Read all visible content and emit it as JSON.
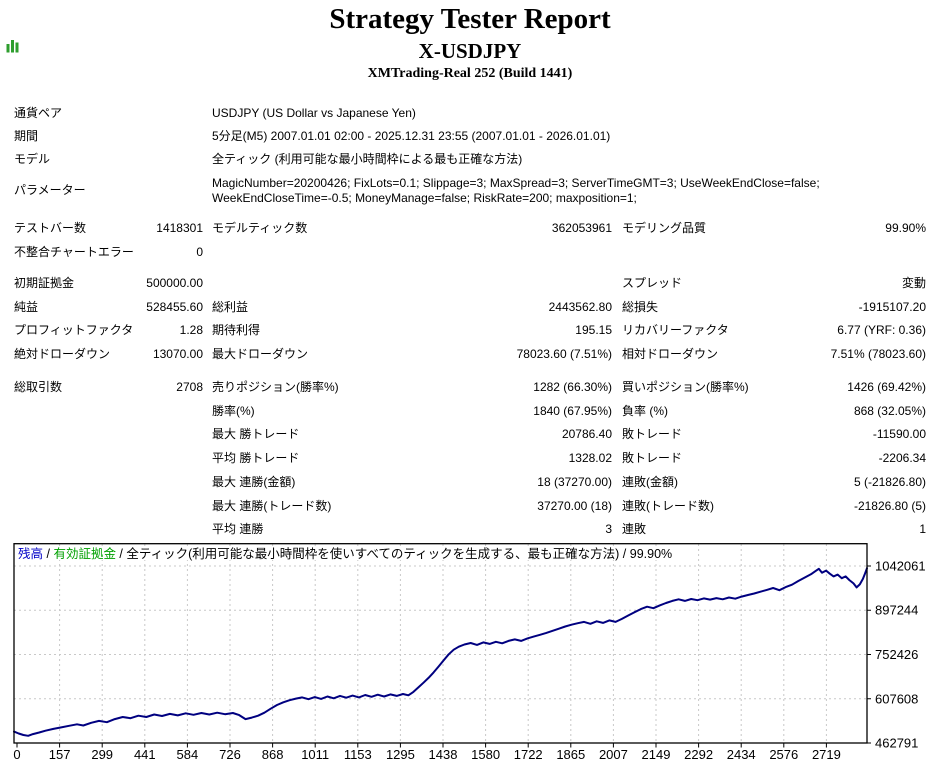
{
  "header": {
    "title": "Strategy Tester Report",
    "symbol": "X-USDJPY",
    "broker": "XMTrading-Real 252 (Build 1441)",
    "icon": "green-bar-chart-icon",
    "icon_color": "#2E9E2E"
  },
  "report": {
    "rows": [
      {
        "l1": "通貨ペア",
        "w": "USDJPY (US Dollar vs Japanese Yen)"
      },
      {
        "l1": "期間",
        "w": "5分足(M5) 2007.01.01 02:00 - 2025.12.31 23:55 (2007.01.01 - 2026.01.01)"
      },
      {
        "l1": "モデル",
        "w": "全ティック (利用可能な最小時間枠による最も正確な方法)"
      },
      {
        "l1": "パラメーター",
        "w_lines": [
          "MagicNumber=20200426; FixLots=0.1; Slippage=3; MaxSpread=3; ServerTimeGMT=3; UseWeekEndClose=false;",
          "WeekEndCloseTime=-0.5; MoneyManage=false; RiskRate=200; maxposition=1;"
        ]
      },
      {
        "l1": "テストバー数",
        "v1": "1418301",
        "l2": "モデルティック数",
        "v2": "362053961",
        "l3": "モデリング品質",
        "v3": "99.90%"
      },
      {
        "l1": "不整合チャートエラー",
        "v1": "0"
      },
      {
        "l1": "初期証拠金",
        "v1": "500000.00",
        "l3": "スプレッド",
        "v3": "変動"
      },
      {
        "l1": "純益",
        "v1": "528455.60",
        "l2": "総利益",
        "v2": "2443562.80",
        "l3": "総損失",
        "v3": "-1915107.20"
      },
      {
        "l1": "プロフィットファクタ",
        "v1": "1.28",
        "l2": "期待利得",
        "v2": "195.15",
        "l3": "リカバリーファクタ",
        "v3": "6.77 (YRF: 0.36)"
      },
      {
        "l1": "絶対ドローダウン",
        "v1": "13070.00",
        "l2": "最大ドローダウン",
        "v2": "78023.60 (7.51%)",
        "l3": "相対ドローダウン",
        "v3": "7.51% (78023.60)"
      },
      {
        "l1": "総取引数",
        "v1": "2708",
        "l2": "売りポジション(勝率%)",
        "v2": "1282 (66.30%)",
        "l3": "買いポジション(勝率%)",
        "v3": "1426 (69.42%)"
      },
      {
        "l2": "勝率(%)",
        "v2": "1840 (67.95%)",
        "l3": "負率 (%)",
        "v3": "868 (32.05%)"
      },
      {
        "l2": "最大 勝トレード",
        "v2": "20786.40",
        "l3": "敗トレード",
        "v3": "-11590.00"
      },
      {
        "l2": "平均 勝トレード",
        "v2": "1328.02",
        "l3": "敗トレード",
        "v3": "-2206.34"
      },
      {
        "l2": "最大 連勝(金額)",
        "v2": "18 (37270.00)",
        "l3": "連敗(金額)",
        "v3": "5 (-21826.80)"
      },
      {
        "l2": "最大 連勝(トレード数)",
        "v2": "37270.00 (18)",
        "l3": "連敗(トレード数)",
        "v3": "-21826.80 (5)"
      },
      {
        "l2": "平均 連勝",
        "v2": "3",
        "l3": "連敗",
        "v3": "1"
      }
    ]
  },
  "chart_data": {
    "type": "line",
    "title": "残高 / 有効証拠金 / 全ティック(利用可能な最小時間枠を使いすべてのティックを生成する、最も正確な方法) / 99.90%",
    "legend_parts": {
      "balance": "残高",
      "sep1": " / ",
      "equity": "有効証拠金",
      "rest": " / 全ティック(利用可能な最小時間枠を使いすべてのティックを生成する、最も正確な方法) / 99.90%"
    },
    "colors": {
      "balance_text": "#0000C8",
      "equity_text": "#00A000",
      "curve": "#000080",
      "grid": "#C8C8C8",
      "axis": "#000000"
    },
    "legend_position": "top-left-inside",
    "grid": true,
    "x_ticks": [
      0,
      157,
      299,
      441,
      584,
      726,
      868,
      1011,
      1153,
      1295,
      1438,
      1580,
      1722,
      1865,
      2007,
      2149,
      2292,
      2434,
      2576,
      2719
    ],
    "y_ticks": [
      462791,
      607608,
      752426,
      897244,
      1042061
    ],
    "x_range": [
      0,
      2708
    ],
    "ylim": [
      462791,
      1042061
    ],
    "series": [
      {
        "name": "残高",
        "points": [
          [
            0,
            500000
          ],
          [
            15,
            494000
          ],
          [
            30,
            489000
          ],
          [
            45,
            486500
          ],
          [
            60,
            492000
          ],
          [
            80,
            497000
          ],
          [
            100,
            503000
          ],
          [
            125,
            509000
          ],
          [
            150,
            514000
          ],
          [
            175,
            519000
          ],
          [
            200,
            524000
          ],
          [
            220,
            520000
          ],
          [
            245,
            529000
          ],
          [
            270,
            535000
          ],
          [
            295,
            531000
          ],
          [
            320,
            541000
          ],
          [
            345,
            548000
          ],
          [
            370,
            544000
          ],
          [
            395,
            552000
          ],
          [
            420,
            548000
          ],
          [
            445,
            556000
          ],
          [
            470,
            551000
          ],
          [
            495,
            558000
          ],
          [
            520,
            553000
          ],
          [
            545,
            560000
          ],
          [
            570,
            555000
          ],
          [
            595,
            561000
          ],
          [
            620,
            556000
          ],
          [
            645,
            562000
          ],
          [
            670,
            557000
          ],
          [
            695,
            561000
          ],
          [
            715,
            554000
          ],
          [
            735,
            541000
          ],
          [
            755,
            546000
          ],
          [
            775,
            552000
          ],
          [
            795,
            562000
          ],
          [
            815,
            575000
          ],
          [
            835,
            587000
          ],
          [
            855,
            596000
          ],
          [
            875,
            603000
          ],
          [
            895,
            608000
          ],
          [
            915,
            612000
          ],
          [
            935,
            606000
          ],
          [
            955,
            613000
          ],
          [
            975,
            607000
          ],
          [
            995,
            615000
          ],
          [
            1015,
            609000
          ],
          [
            1035,
            617000
          ],
          [
            1055,
            611000
          ],
          [
            1075,
            618000
          ],
          [
            1095,
            612000
          ],
          [
            1115,
            620000
          ],
          [
            1135,
            614000
          ],
          [
            1155,
            621000
          ],
          [
            1175,
            615000
          ],
          [
            1195,
            622000
          ],
          [
            1215,
            617000
          ],
          [
            1235,
            623000
          ],
          [
            1252,
            619000
          ],
          [
            1268,
            630000
          ],
          [
            1284,
            645000
          ],
          [
            1300,
            660000
          ],
          [
            1316,
            676000
          ],
          [
            1332,
            694000
          ],
          [
            1348,
            713000
          ],
          [
            1364,
            733000
          ],
          [
            1380,
            753000
          ],
          [
            1396,
            768000
          ],
          [
            1412,
            778000
          ],
          [
            1430,
            785000
          ],
          [
            1450,
            790000
          ],
          [
            1470,
            784000
          ],
          [
            1490,
            792000
          ],
          [
            1510,
            787000
          ],
          [
            1530,
            794000
          ],
          [
            1550,
            789000
          ],
          [
            1570,
            797000
          ],
          [
            1590,
            802000
          ],
          [
            1610,
            797000
          ],
          [
            1630,
            805000
          ],
          [
            1650,
            811000
          ],
          [
            1670,
            817000
          ],
          [
            1690,
            823000
          ],
          [
            1710,
            830000
          ],
          [
            1730,
            837000
          ],
          [
            1750,
            844000
          ],
          [
            1770,
            850000
          ],
          [
            1790,
            855000
          ],
          [
            1810,
            859000
          ],
          [
            1830,
            853000
          ],
          [
            1850,
            861000
          ],
          [
            1870,
            856000
          ],
          [
            1890,
            864000
          ],
          [
            1910,
            859000
          ],
          [
            1930,
            869000
          ],
          [
            1950,
            880000
          ],
          [
            1970,
            891000
          ],
          [
            1990,
            901000
          ],
          [
            2010,
            909000
          ],
          [
            2030,
            904000
          ],
          [
            2050,
            913000
          ],
          [
            2070,
            921000
          ],
          [
            2090,
            928000
          ],
          [
            2110,
            933000
          ],
          [
            2130,
            928000
          ],
          [
            2150,
            934000
          ],
          [
            2170,
            930000
          ],
          [
            2190,
            936000
          ],
          [
            2210,
            932000
          ],
          [
            2230,
            937000
          ],
          [
            2250,
            933000
          ],
          [
            2270,
            939000
          ],
          [
            2290,
            935000
          ],
          [
            2310,
            942000
          ],
          [
            2330,
            947000
          ],
          [
            2350,
            952000
          ],
          [
            2370,
            958000
          ],
          [
            2390,
            964000
          ],
          [
            2410,
            970000
          ],
          [
            2430,
            963000
          ],
          [
            2450,
            973000
          ],
          [
            2470,
            981000
          ],
          [
            2490,
            993000
          ],
          [
            2510,
            1004000
          ],
          [
            2530,
            1015000
          ],
          [
            2545,
            1026000
          ],
          [
            2555,
            1033000
          ],
          [
            2565,
            1020000
          ],
          [
            2578,
            1027000
          ],
          [
            2590,
            1017000
          ],
          [
            2602,
            1008000
          ],
          [
            2615,
            1014000
          ],
          [
            2628,
            1002000
          ],
          [
            2640,
            1008000
          ],
          [
            2652,
            996000
          ],
          [
            2665,
            985000
          ],
          [
            2675,
            972000
          ],
          [
            2685,
            982000
          ],
          [
            2695,
            1000000
          ],
          [
            2702,
            1018000
          ],
          [
            2708,
            1035000
          ]
        ]
      }
    ]
  }
}
